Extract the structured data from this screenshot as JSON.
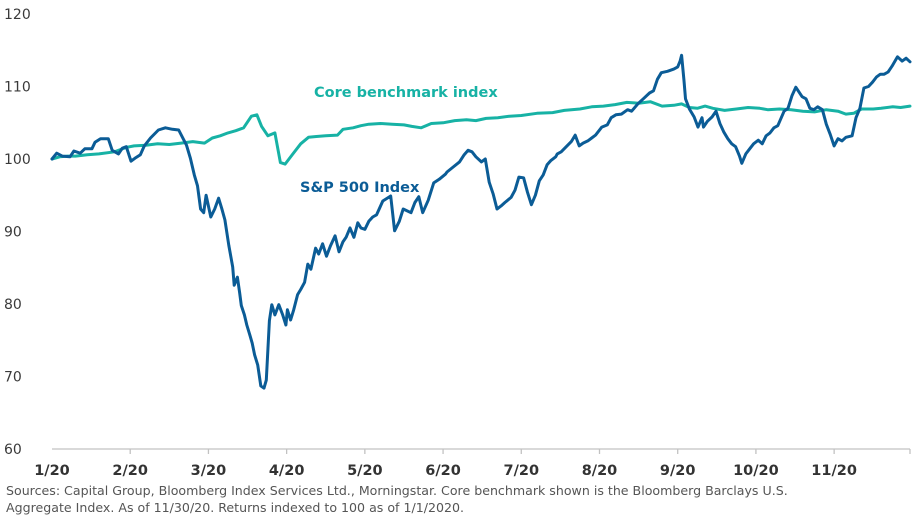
{
  "chart_data": {
    "type": "line",
    "title": "",
    "xlabel": "",
    "ylabel": "",
    "ylim": [
      60,
      120
    ],
    "yticks": [
      "60",
      "70",
      "80",
      "90",
      "100",
      "110",
      "120"
    ],
    "ytick_values": [
      60,
      70,
      80,
      90,
      100,
      110,
      120
    ],
    "xlim": [
      0,
      11
    ],
    "xticks": [
      "1/20",
      "2/20",
      "3/20",
      "4/20",
      "5/20",
      "6/20",
      "7/20",
      "8/20",
      "9/20",
      "10/20",
      "11/20"
    ],
    "xtick_values": [
      0,
      1,
      2,
      3,
      4,
      5,
      6,
      7,
      8,
      9,
      10
    ],
    "x_unit": "months since 1/1/2020",
    "grid": false,
    "series": [
      {
        "name": "Core benchmark index",
        "color": "#17b2a5",
        "points": [
          [
            0,
            100
          ],
          [
            0.1,
            100.3
          ],
          [
            0.2,
            100.4
          ],
          [
            0.3,
            100.4
          ],
          [
            0.45,
            100.6
          ],
          [
            0.6,
            100.7
          ],
          [
            0.8,
            101.0
          ],
          [
            0.95,
            101.6
          ],
          [
            1.05,
            101.8
          ],
          [
            1.2,
            101.9
          ],
          [
            1.35,
            102.1
          ],
          [
            1.5,
            102.0
          ],
          [
            1.65,
            102.2
          ],
          [
            1.8,
            102.4
          ],
          [
            1.95,
            102.2
          ],
          [
            2.05,
            102.9
          ],
          [
            2.15,
            103.2
          ],
          [
            2.25,
            103.6
          ],
          [
            2.35,
            103.9
          ],
          [
            2.45,
            104.3
          ],
          [
            2.55,
            105.9
          ],
          [
            2.62,
            106.1
          ],
          [
            2.68,
            104.5
          ],
          [
            2.76,
            103.2
          ],
          [
            2.85,
            103.6
          ],
          [
            2.92,
            99.5
          ],
          [
            2.98,
            99.3
          ],
          [
            3.08,
            100.7
          ],
          [
            3.18,
            102.1
          ],
          [
            3.28,
            103.0
          ],
          [
            3.38,
            103.1
          ],
          [
            3.5,
            103.2
          ],
          [
            3.65,
            103.3
          ],
          [
            3.72,
            104.1
          ],
          [
            3.85,
            104.3
          ],
          [
            3.95,
            104.6
          ],
          [
            4.05,
            104.8
          ],
          [
            4.2,
            104.9
          ],
          [
            4.35,
            104.8
          ],
          [
            4.5,
            104.7
          ],
          [
            4.6,
            104.5
          ],
          [
            4.72,
            104.3
          ],
          [
            4.85,
            104.9
          ],
          [
            5.0,
            105.0
          ],
          [
            5.15,
            105.3
          ],
          [
            5.3,
            105.4
          ],
          [
            5.42,
            105.3
          ],
          [
            5.55,
            105.6
          ],
          [
            5.7,
            105.7
          ],
          [
            5.85,
            105.9
          ],
          [
            6.0,
            106.0
          ],
          [
            6.2,
            106.3
          ],
          [
            6.4,
            106.4
          ],
          [
            6.55,
            106.7
          ],
          [
            6.75,
            106.9
          ],
          [
            6.9,
            107.2
          ],
          [
            7.05,
            107.3
          ],
          [
            7.2,
            107.5
          ],
          [
            7.35,
            107.8
          ],
          [
            7.5,
            107.7
          ],
          [
            7.65,
            107.9
          ],
          [
            7.8,
            107.3
          ],
          [
            7.95,
            107.4
          ],
          [
            8.05,
            107.6
          ],
          [
            8.15,
            107.1
          ],
          [
            8.25,
            107.0
          ],
          [
            8.35,
            107.3
          ],
          [
            8.45,
            107.0
          ],
          [
            8.6,
            106.7
          ],
          [
            8.75,
            106.9
          ],
          [
            8.9,
            107.1
          ],
          [
            9.05,
            107.0
          ],
          [
            9.15,
            106.8
          ],
          [
            9.3,
            106.9
          ],
          [
            9.45,
            106.8
          ],
          [
            9.6,
            106.6
          ],
          [
            9.75,
            106.5
          ],
          [
            9.9,
            106.8
          ],
          [
            10.05,
            106.6
          ],
          [
            10.15,
            106.2
          ],
          [
            10.25,
            106.3
          ],
          [
            10.35,
            106.9
          ],
          [
            10.5,
            106.9
          ],
          [
            10.6,
            107.0
          ],
          [
            10.75,
            107.2
          ],
          [
            10.85,
            107.1
          ],
          [
            10.97,
            107.3
          ]
        ]
      },
      {
        "name": "S&P 500 Index",
        "color": "#0b5c96",
        "points": [
          [
            0,
            100
          ],
          [
            0.06,
            100.8
          ],
          [
            0.13,
            100.4
          ],
          [
            0.23,
            100.3
          ],
          [
            0.28,
            101.1
          ],
          [
            0.36,
            100.8
          ],
          [
            0.42,
            101.4
          ],
          [
            0.51,
            101.4
          ],
          [
            0.55,
            102.3
          ],
          [
            0.62,
            102.8
          ],
          [
            0.72,
            102.8
          ],
          [
            0.77,
            101.2
          ],
          [
            0.85,
            100.7
          ],
          [
            0.9,
            101.5
          ],
          [
            0.95,
            101.7
          ],
          [
            1.01,
            99.7
          ],
          [
            1.06,
            100.1
          ],
          [
            1.13,
            100.6
          ],
          [
            1.18,
            101.8
          ],
          [
            1.26,
            102.9
          ],
          [
            1.36,
            104.0
          ],
          [
            1.45,
            104.3
          ],
          [
            1.54,
            104.1
          ],
          [
            1.62,
            104.0
          ],
          [
            1.72,
            101.9
          ],
          [
            1.77,
            100.1
          ],
          [
            1.82,
            97.8
          ],
          [
            1.86,
            96.3
          ],
          [
            1.9,
            93.1
          ],
          [
            1.94,
            92.6
          ],
          [
            1.97,
            95.0
          ],
          [
            2.03,
            92.0
          ],
          [
            2.08,
            93.1
          ],
          [
            2.13,
            94.6
          ],
          [
            2.17,
            93.2
          ],
          [
            2.21,
            91.6
          ],
          [
            2.26,
            88.1
          ],
          [
            2.31,
            85.1
          ],
          [
            2.33,
            82.6
          ],
          [
            2.37,
            83.7
          ],
          [
            2.4,
            81.5
          ],
          [
            2.42,
            79.8
          ],
          [
            2.46,
            78.5
          ],
          [
            2.49,
            77.1
          ],
          [
            2.53,
            75.7
          ],
          [
            2.56,
            74.6
          ],
          [
            2.59,
            73.0
          ],
          [
            2.63,
            71.6
          ],
          [
            2.67,
            68.7
          ],
          [
            2.71,
            68.4
          ],
          [
            2.74,
            69.5
          ],
          [
            2.78,
            77.7
          ],
          [
            2.81,
            79.9
          ],
          [
            2.85,
            78.5
          ],
          [
            2.9,
            79.9
          ],
          [
            2.95,
            78.5
          ],
          [
            2.99,
            77.1
          ],
          [
            3.01,
            79.2
          ],
          [
            3.05,
            77.8
          ],
          [
            3.09,
            79.2
          ],
          [
            3.14,
            81.3
          ],
          [
            3.18,
            82.0
          ],
          [
            3.23,
            83.0
          ],
          [
            3.27,
            85.5
          ],
          [
            3.31,
            84.8
          ],
          [
            3.37,
            87.7
          ],
          [
            3.41,
            86.9
          ],
          [
            3.46,
            88.3
          ],
          [
            3.51,
            86.6
          ],
          [
            3.56,
            88.0
          ],
          [
            3.62,
            89.4
          ],
          [
            3.67,
            87.2
          ],
          [
            3.72,
            88.6
          ],
          [
            3.76,
            89.2
          ],
          [
            3.81,
            90.5
          ],
          [
            3.86,
            89.2
          ],
          [
            3.91,
            91.2
          ],
          [
            3.95,
            90.5
          ],
          [
            4.0,
            90.3
          ],
          [
            4.05,
            91.4
          ],
          [
            4.1,
            92.0
          ],
          [
            4.15,
            92.3
          ],
          [
            4.23,
            94.2
          ],
          [
            4.33,
            94.9
          ],
          [
            4.38,
            90.1
          ],
          [
            4.44,
            91.4
          ],
          [
            4.49,
            93.1
          ],
          [
            4.59,
            92.6
          ],
          [
            4.64,
            94.0
          ],
          [
            4.69,
            94.8
          ],
          [
            4.74,
            92.6
          ],
          [
            4.81,
            94.3
          ],
          [
            4.88,
            96.7
          ],
          [
            4.95,
            97.2
          ],
          [
            5.03,
            97.9
          ],
          [
            5.05,
            98.2
          ],
          [
            5.13,
            98.9
          ],
          [
            5.21,
            99.6
          ],
          [
            5.27,
            100.6
          ],
          [
            5.32,
            101.2
          ],
          [
            5.37,
            101.0
          ],
          [
            5.42,
            100.3
          ],
          [
            5.49,
            99.6
          ],
          [
            5.54,
            100.0
          ],
          [
            5.59,
            96.8
          ],
          [
            5.64,
            95.2
          ],
          [
            5.69,
            93.1
          ],
          [
            5.74,
            93.5
          ],
          [
            5.79,
            94.0
          ],
          [
            5.87,
            94.7
          ],
          [
            5.92,
            95.7
          ],
          [
            5.97,
            97.5
          ],
          [
            6.03,
            97.4
          ],
          [
            6.08,
            95.4
          ],
          [
            6.13,
            93.7
          ],
          [
            6.18,
            95.0
          ],
          [
            6.23,
            97.0
          ],
          [
            6.28,
            97.8
          ],
          [
            6.33,
            99.2
          ],
          [
            6.38,
            99.8
          ],
          [
            6.44,
            100.3
          ],
          [
            6.46,
            100.7
          ],
          [
            6.51,
            101.0
          ],
          [
            6.64,
            102.4
          ],
          [
            6.69,
            103.3
          ],
          [
            6.74,
            101.8
          ],
          [
            6.79,
            102.2
          ],
          [
            6.85,
            102.5
          ],
          [
            6.9,
            102.9
          ],
          [
            6.95,
            103.3
          ],
          [
            7.03,
            104.4
          ],
          [
            7.1,
            104.7
          ],
          [
            7.15,
            105.7
          ],
          [
            7.21,
            106.1
          ],
          [
            7.28,
            106.2
          ],
          [
            7.36,
            106.8
          ],
          [
            7.41,
            106.6
          ],
          [
            7.49,
            107.6
          ],
          [
            7.56,
            108.3
          ],
          [
            7.64,
            109.1
          ],
          [
            7.69,
            109.4
          ],
          [
            7.74,
            111.0
          ],
          [
            7.79,
            111.9
          ],
          [
            7.87,
            112.1
          ],
          [
            7.95,
            112.4
          ],
          [
            8.0,
            112.7
          ],
          [
            8.03,
            113.5
          ],
          [
            8.05,
            114.3
          ],
          [
            8.08,
            110.8
          ],
          [
            8.1,
            108.3
          ],
          [
            8.15,
            106.9
          ],
          [
            8.21,
            105.8
          ],
          [
            8.26,
            104.4
          ],
          [
            8.31,
            105.7
          ],
          [
            8.33,
            104.4
          ],
          [
            8.38,
            105.2
          ],
          [
            8.44,
            105.8
          ],
          [
            8.49,
            106.6
          ],
          [
            8.54,
            104.9
          ],
          [
            8.59,
            103.7
          ],
          [
            8.64,
            102.8
          ],
          [
            8.69,
            102.1
          ],
          [
            8.74,
            101.7
          ],
          [
            8.79,
            100.4
          ],
          [
            8.82,
            99.4
          ],
          [
            8.87,
            100.7
          ],
          [
            8.92,
            101.4
          ],
          [
            8.97,
            102.1
          ],
          [
            9.03,
            102.6
          ],
          [
            9.08,
            102.1
          ],
          [
            9.13,
            103.2
          ],
          [
            9.18,
            103.6
          ],
          [
            9.23,
            104.3
          ],
          [
            9.28,
            104.6
          ],
          [
            9.36,
            106.6
          ],
          [
            9.41,
            107.0
          ],
          [
            9.46,
            108.7
          ],
          [
            9.51,
            109.9
          ],
          [
            9.59,
            108.6
          ],
          [
            9.64,
            108.3
          ],
          [
            9.69,
            107.0
          ],
          [
            9.74,
            106.8
          ],
          [
            9.79,
            107.2
          ],
          [
            9.85,
            106.8
          ],
          [
            9.9,
            104.8
          ],
          [
            9.95,
            103.4
          ],
          [
            10.0,
            101.8
          ],
          [
            10.05,
            102.8
          ],
          [
            10.1,
            102.5
          ],
          [
            10.15,
            103.0
          ],
          [
            10.23,
            103.2
          ],
          [
            10.28,
            105.7
          ],
          [
            10.33,
            107.0
          ],
          [
            10.38,
            109.8
          ],
          [
            10.44,
            110.0
          ],
          [
            10.49,
            110.6
          ],
          [
            10.54,
            111.3
          ],
          [
            10.59,
            111.7
          ],
          [
            10.64,
            111.7
          ],
          [
            10.69,
            112.0
          ],
          [
            10.74,
            112.8
          ],
          [
            10.81,
            114.1
          ],
          [
            10.87,
            113.5
          ],
          [
            10.92,
            113.9
          ],
          [
            10.97,
            113.4
          ]
        ]
      }
    ],
    "annotations": [
      {
        "text": "Core benchmark index",
        "series": "Core benchmark index"
      },
      {
        "text": "S&P 500 Index",
        "series": "S&P 500 Index"
      }
    ]
  },
  "footnote": {
    "line1": "Sources: Capital Group, Bloomberg Index Services Ltd., Morningstar. Core benchmark shown is the Bloomberg Barclays U.S.",
    "line2": "Aggregate Index. As of 11/30/20. Returns indexed to 100 as of 1/1/2020."
  }
}
